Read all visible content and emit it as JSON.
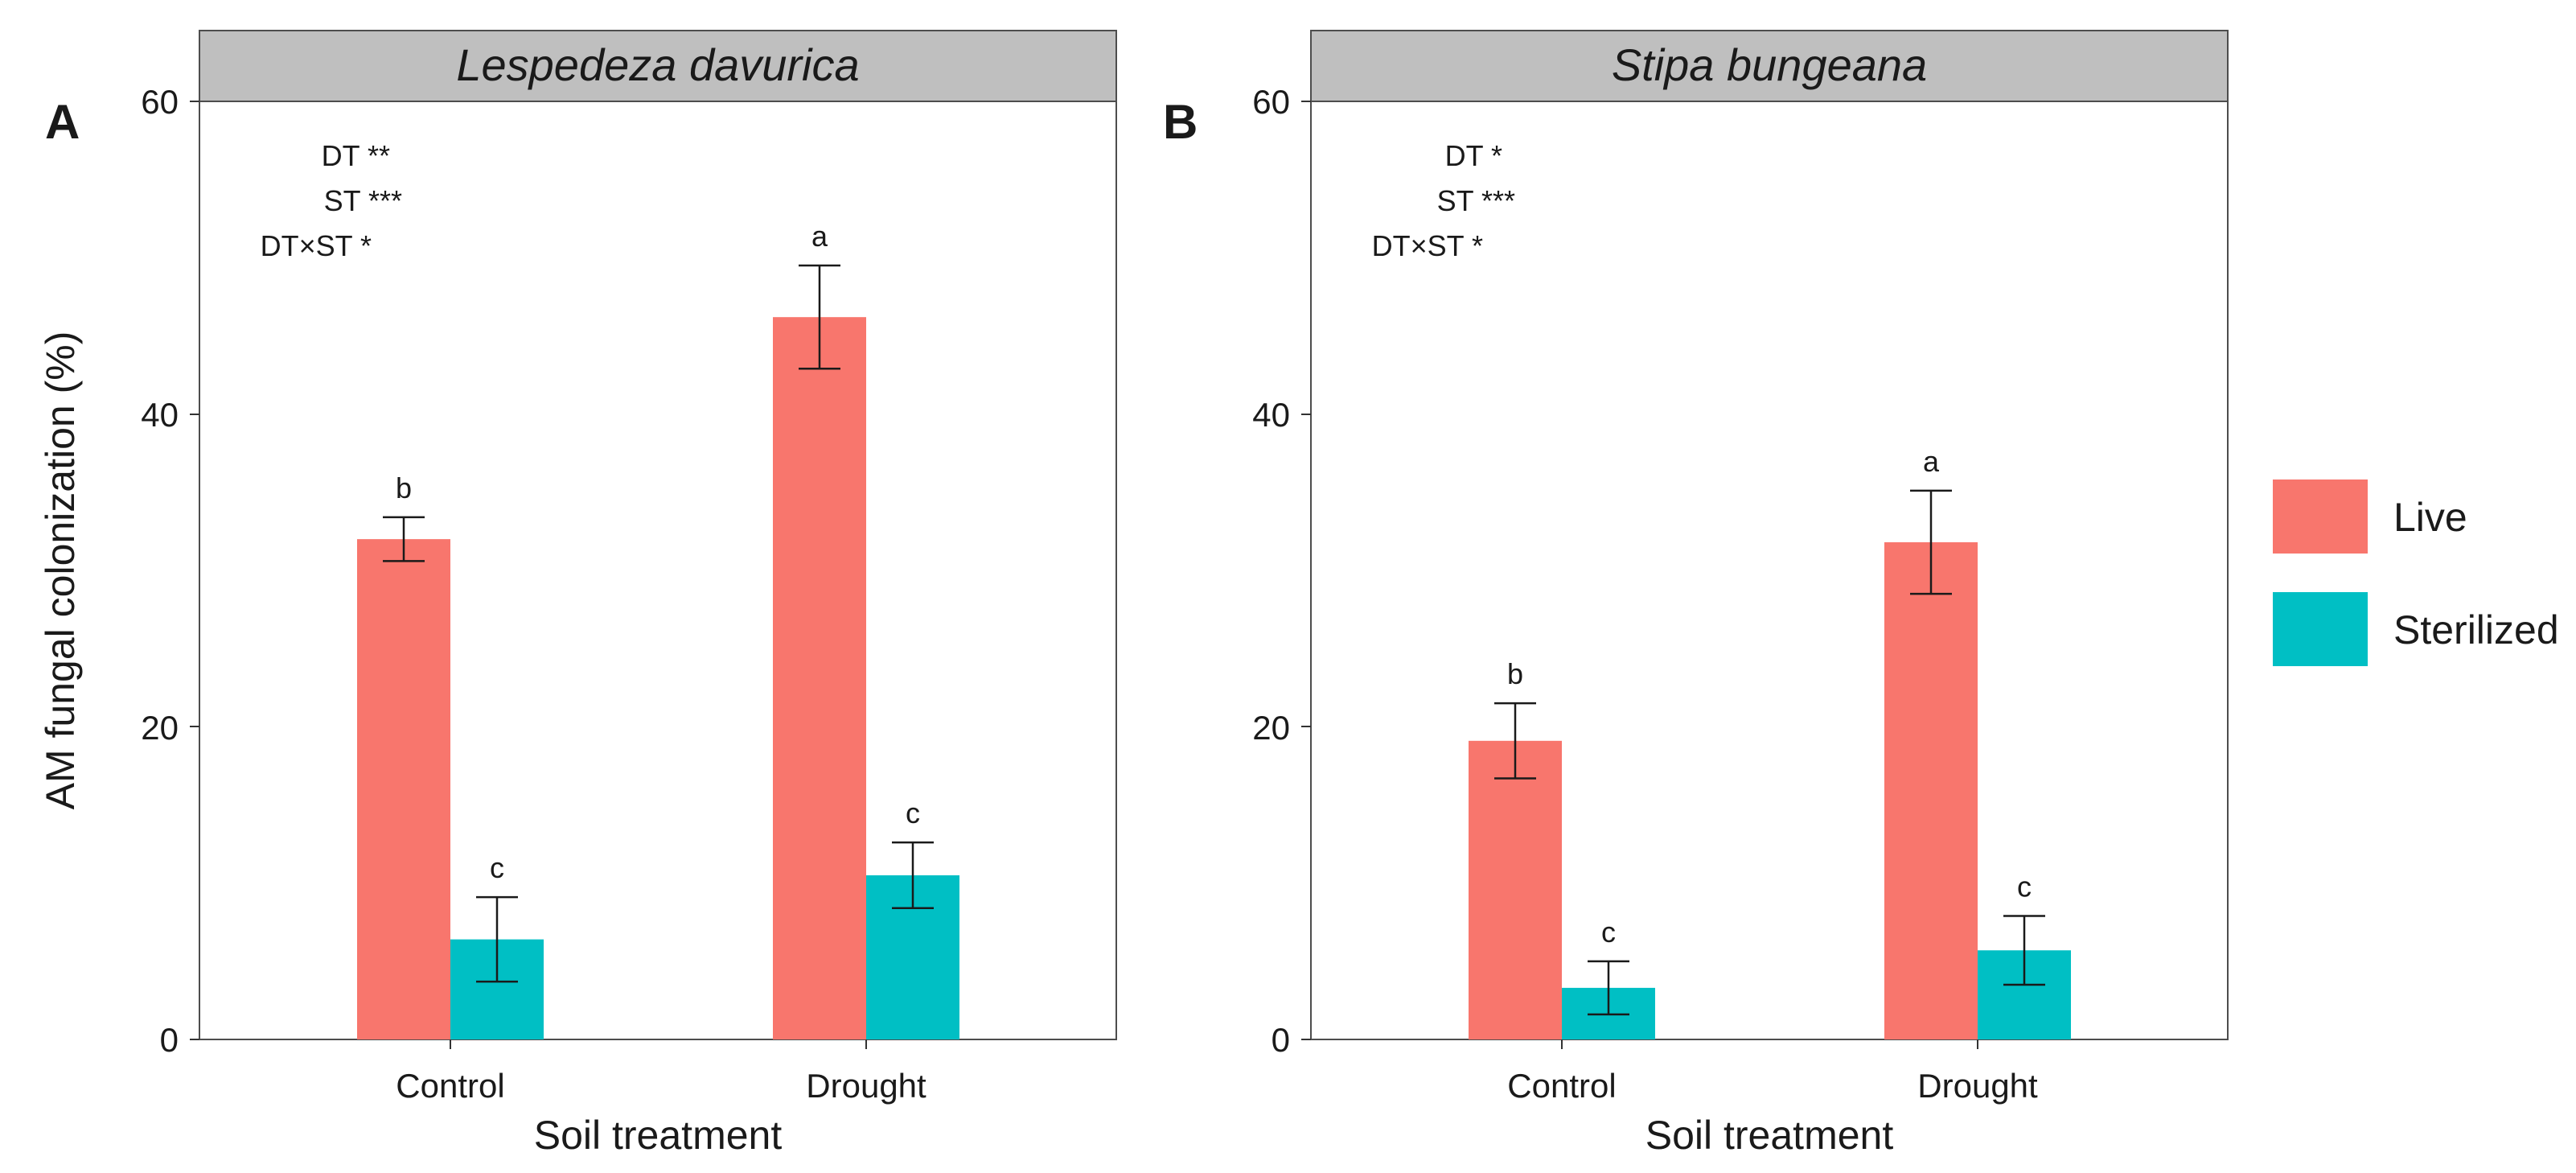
{
  "chart_data": [
    {
      "panel": "A",
      "type": "bar",
      "title": "Lespedeza davurica",
      "xlabel": "Soil treatment",
      "ylabel": "AM fungal colonization (%)",
      "ylim": [
        0,
        60
      ],
      "yticks": [
        "0",
        "20",
        "40",
        "60"
      ],
      "categories": [
        "Control",
        "Drought"
      ],
      "series": [
        {
          "name": "Live",
          "values": [
            32,
            46.2
          ],
          "errors": [
            1.4,
            3.3
          ],
          "letters": [
            "b",
            "a"
          ]
        },
        {
          "name": "Sterilized",
          "values": [
            6.4,
            10.5
          ],
          "errors": [
            2.7,
            2.1
          ],
          "letters": [
            "c",
            "c"
          ]
        }
      ],
      "annotations": [
        {
          "term": "DT",
          "stars": "**"
        },
        {
          "term": "ST",
          "stars": "***"
        },
        {
          "term": "DT×ST",
          "stars": "*"
        }
      ]
    },
    {
      "panel": "B",
      "type": "bar",
      "title": "Stipa bungeana",
      "xlabel": "Soil treatment",
      "ylabel": "",
      "ylim": [
        0,
        60
      ],
      "yticks": [
        "0",
        "20",
        "40",
        "60"
      ],
      "categories": [
        "Control",
        "Drought"
      ],
      "series": [
        {
          "name": "Live",
          "values": [
            19.1,
            31.8
          ],
          "errors": [
            2.4,
            3.3
          ],
          "letters": [
            "b",
            "a"
          ]
        },
        {
          "name": "Sterilized",
          "values": [
            3.3,
            5.7
          ],
          "errors": [
            1.7,
            2.2
          ],
          "letters": [
            "c",
            "c"
          ]
        }
      ],
      "annotations": [
        {
          "term": "DT",
          "stars": "*"
        },
        {
          "term": "ST",
          "stars": "***"
        },
        {
          "term": "DT×ST",
          "stars": "*"
        }
      ]
    }
  ],
  "legend": {
    "position": "right",
    "items": [
      {
        "label": "Live",
        "color": "#F8766D"
      },
      {
        "label": "Sterilized",
        "color": "#00BFC4"
      }
    ]
  }
}
